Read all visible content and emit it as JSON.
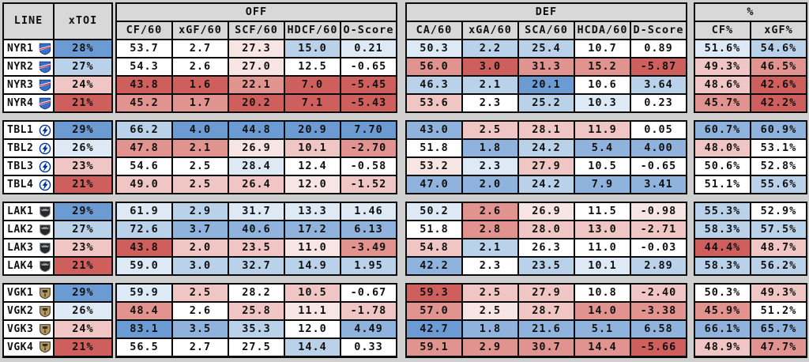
{
  "palette": {
    "b4": "#6b9bd2",
    "b3": "#8fb3dd",
    "b2": "#bad1ea",
    "b1": "#dde9f5",
    "w": "#ffffff",
    "r1": "#f7e5e3",
    "r2": "#efc6c3",
    "r3": "#e0938f",
    "r4": "#cf5f5c",
    "header_bg": "#d8d8d8",
    "page_bg": "#cfcfcf",
    "border": "#0a0a0a",
    "text": "#101010"
  },
  "chart_data": {
    "type": "table",
    "corner_headers": {
      "line": "LINE",
      "xtoi": "xTOI"
    },
    "groups": [
      {
        "label": "OFF",
        "columns": [
          "CF/60",
          "xGF/60",
          "SCF/60",
          "HDCF/60",
          "O-Score"
        ]
      },
      {
        "label": "DEF",
        "columns": [
          "CA/60",
          "xGA/60",
          "SCA/60",
          "HCDA/60",
          "D-Score"
        ]
      },
      {
        "label": "%",
        "columns": [
          "CF%",
          "xGF%"
        ]
      }
    ],
    "teams": [
      {
        "team": "NYR",
        "logo": "nyr-rangers-shield-logo",
        "rows": [
          {
            "line": "NYR1",
            "cells": [
              [
                "28%",
                "b4"
              ],
              [
                "53.7",
                "w"
              ],
              [
                "2.7",
                "w"
              ],
              [
                "27.3",
                "r1"
              ],
              [
                "15.0",
                "b2"
              ],
              [
                "0.21",
                "b1"
              ],
              [
                "50.3",
                "b1"
              ],
              [
                "2.2",
                "b2"
              ],
              [
                "25.4",
                "b2"
              ],
              [
                "10.7",
                "w"
              ],
              [
                "0.89",
                "w"
              ],
              [
                "51.6%",
                "b1"
              ],
              [
                "54.6%",
                "b2"
              ]
            ]
          },
          {
            "line": "NYR2",
            "cells": [
              [
                "27%",
                "b2"
              ],
              [
                "54.3",
                "w"
              ],
              [
                "2.6",
                "w"
              ],
              [
                "27.0",
                "r1"
              ],
              [
                "12.5",
                "w"
              ],
              [
                "-0.65",
                "w"
              ],
              [
                "56.0",
                "r3"
              ],
              [
                "3.0",
                "r4"
              ],
              [
                "31.3",
                "r3"
              ],
              [
                "15.2",
                "r3"
              ],
              [
                "-5.87",
                "r4"
              ],
              [
                "49.3%",
                "r2"
              ],
              [
                "46.5%",
                "r3"
              ]
            ]
          },
          {
            "line": "NYR3",
            "cells": [
              [
                "24%",
                "r2"
              ],
              [
                "43.8",
                "r4"
              ],
              [
                "1.6",
                "r4"
              ],
              [
                "22.1",
                "r3"
              ],
              [
                "7.0",
                "r4"
              ],
              [
                "-5.45",
                "r4"
              ],
              [
                "46.3",
                "b2"
              ],
              [
                "2.1",
                "b2"
              ],
              [
                "20.1",
                "b4"
              ],
              [
                "10.6",
                "w"
              ],
              [
                "3.64",
                "b2"
              ],
              [
                "48.6%",
                "r2"
              ],
              [
                "42.6%",
                "r4"
              ]
            ]
          },
          {
            "line": "NYR4",
            "cells": [
              [
                "21%",
                "r4"
              ],
              [
                "45.2",
                "r3"
              ],
              [
                "1.7",
                "r3"
              ],
              [
                "20.2",
                "r4"
              ],
              [
                "7.1",
                "r4"
              ],
              [
                "-5.43",
                "r4"
              ],
              [
                "53.6",
                "r2"
              ],
              [
                "2.3",
                "w"
              ],
              [
                "25.2",
                "b2"
              ],
              [
                "10.3",
                "b1"
              ],
              [
                "0.23",
                "w"
              ],
              [
                "45.7%",
                "r3"
              ],
              [
                "42.2%",
                "r4"
              ]
            ]
          }
        ]
      },
      {
        "team": "TBL",
        "logo": "tbl-lightning-bolt-logo",
        "rows": [
          {
            "line": "TBL1",
            "cells": [
              [
                "29%",
                "b4"
              ],
              [
                "66.2",
                "b2"
              ],
              [
                "4.0",
                "b4"
              ],
              [
                "44.8",
                "b4"
              ],
              [
                "20.9",
                "b4"
              ],
              [
                "7.70",
                "b4"
              ],
              [
                "43.0",
                "b3"
              ],
              [
                "2.5",
                "r2"
              ],
              [
                "28.1",
                "r2"
              ],
              [
                "11.9",
                "r2"
              ],
              [
                "0.05",
                "w"
              ],
              [
                "60.7%",
                "b3"
              ],
              [
                "60.9%",
                "b3"
              ]
            ]
          },
          {
            "line": "TBL2",
            "cells": [
              [
                "26%",
                "b1"
              ],
              [
                "47.8",
                "r3"
              ],
              [
                "2.1",
                "r3"
              ],
              [
                "26.9",
                "r1"
              ],
              [
                "10.1",
                "r2"
              ],
              [
                "-2.70",
                "r3"
              ],
              [
                "51.8",
                "w"
              ],
              [
                "1.8",
                "b3"
              ],
              [
                "24.2",
                "b2"
              ],
              [
                "5.4",
                "b3"
              ],
              [
                "4.00",
                "b3"
              ],
              [
                "48.0%",
                "r2"
              ],
              [
                "53.1%",
                "w"
              ]
            ]
          },
          {
            "line": "TBL3",
            "cells": [
              [
                "23%",
                "r2"
              ],
              [
                "54.6",
                "w"
              ],
              [
                "2.5",
                "w"
              ],
              [
                "28.4",
                "b1"
              ],
              [
                "12.4",
                "w"
              ],
              [
                "-0.58",
                "w"
              ],
              [
                "53.2",
                "r1"
              ],
              [
                "2.3",
                "b1"
              ],
              [
                "27.9",
                "r2"
              ],
              [
                "10.5",
                "w"
              ],
              [
                "-0.65",
                "w"
              ],
              [
                "50.6%",
                "w"
              ],
              [
                "52.8%",
                "w"
              ]
            ]
          },
          {
            "line": "TBL4",
            "cells": [
              [
                "21%",
                "r4"
              ],
              [
                "49.0",
                "r2"
              ],
              [
                "2.5",
                "r2"
              ],
              [
                "26.4",
                "r2"
              ],
              [
                "12.0",
                "r1"
              ],
              [
                "-1.52",
                "r2"
              ],
              [
                "47.0",
                "b3"
              ],
              [
                "2.0",
                "b3"
              ],
              [
                "24.2",
                "b2"
              ],
              [
                "7.9",
                "b3"
              ],
              [
                "3.41",
                "b3"
              ],
              [
                "51.1%",
                "w"
              ],
              [
                "55.6%",
                "b2"
              ]
            ]
          }
        ]
      },
      {
        "team": "LAK",
        "logo": "lak-kings-crest-logo",
        "rows": [
          {
            "line": "LAK1",
            "cells": [
              [
                "29%",
                "b4"
              ],
              [
                "61.9",
                "b1"
              ],
              [
                "2.9",
                "b2"
              ],
              [
                "31.7",
                "b1"
              ],
              [
                "13.3",
                "b1"
              ],
              [
                "1.46",
                "b1"
              ],
              [
                "50.2",
                "b1"
              ],
              [
                "2.6",
                "r3"
              ],
              [
                "26.9",
                "r1"
              ],
              [
                "11.5",
                "w"
              ],
              [
                "-0.98",
                "r1"
              ],
              [
                "55.3%",
                "b2"
              ],
              [
                "52.9%",
                "w"
              ]
            ]
          },
          {
            "line": "LAK2",
            "cells": [
              [
                "27%",
                "b2"
              ],
              [
                "72.6",
                "b2"
              ],
              [
                "3.7",
                "b3"
              ],
              [
                "40.6",
                "b3"
              ],
              [
                "17.2",
                "b3"
              ],
              [
                "6.13",
                "b3"
              ],
              [
                "51.8",
                "w"
              ],
              [
                "2.8",
                "r3"
              ],
              [
                "28.0",
                "r2"
              ],
              [
                "13.0",
                "r2"
              ],
              [
                "-2.71",
                "r2"
              ],
              [
                "58.3%",
                "b2"
              ],
              [
                "57.5%",
                "b2"
              ]
            ]
          },
          {
            "line": "LAK3",
            "cells": [
              [
                "23%",
                "r2"
              ],
              [
                "43.8",
                "r4"
              ],
              [
                "2.0",
                "r2"
              ],
              [
                "23.5",
                "r2"
              ],
              [
                "11.0",
                "r1"
              ],
              [
                "-3.49",
                "r3"
              ],
              [
                "54.8",
                "r2"
              ],
              [
                "2.1",
                "b2"
              ],
              [
                "26.3",
                "w"
              ],
              [
                "11.0",
                "w"
              ],
              [
                "-0.03",
                "w"
              ],
              [
                "44.4%",
                "r4"
              ],
              [
                "48.7%",
                "r2"
              ]
            ]
          },
          {
            "line": "LAK4",
            "cells": [
              [
                "21%",
                "r4"
              ],
              [
                "59.0",
                "b1"
              ],
              [
                "3.0",
                "b2"
              ],
              [
                "32.7",
                "b2"
              ],
              [
                "14.9",
                "b2"
              ],
              [
                "1.95",
                "b2"
              ],
              [
                "42.2",
                "b3"
              ],
              [
                "2.3",
                "w"
              ],
              [
                "23.5",
                "b2"
              ],
              [
                "10.1",
                "b1"
              ],
              [
                "2.89",
                "b2"
              ],
              [
                "58.3%",
                "b2"
              ],
              [
                "56.2%",
                "b2"
              ]
            ]
          }
        ]
      },
      {
        "team": "VGK",
        "logo": "vgk-golden-knights-shield-logo",
        "rows": [
          {
            "line": "VGK1",
            "cells": [
              [
                "29%",
                "b4"
              ],
              [
                "59.9",
                "b1"
              ],
              [
                "2.5",
                "r2"
              ],
              [
                "28.2",
                "w"
              ],
              [
                "10.5",
                "r2"
              ],
              [
                "-0.67",
                "w"
              ],
              [
                "59.3",
                "r4"
              ],
              [
                "2.5",
                "r2"
              ],
              [
                "27.9",
                "r2"
              ],
              [
                "10.8",
                "w"
              ],
              [
                "-2.40",
                "r2"
              ],
              [
                "50.3%",
                "w"
              ],
              [
                "49.3%",
                "r2"
              ]
            ]
          },
          {
            "line": "VGK2",
            "cells": [
              [
                "26%",
                "b1"
              ],
              [
                "48.4",
                "r3"
              ],
              [
                "2.6",
                "w"
              ],
              [
                "25.8",
                "r2"
              ],
              [
                "11.1",
                "r1"
              ],
              [
                "-1.78",
                "r2"
              ],
              [
                "57.0",
                "r3"
              ],
              [
                "2.5",
                "r1"
              ],
              [
                "28.7",
                "r2"
              ],
              [
                "14.0",
                "r3"
              ],
              [
                "-3.38",
                "r3"
              ],
              [
                "45.9%",
                "r3"
              ],
              [
                "51.2%",
                "w"
              ]
            ]
          },
          {
            "line": "VGK3",
            "cells": [
              [
                "24%",
                "r2"
              ],
              [
                "83.1",
                "b4"
              ],
              [
                "3.5",
                "b3"
              ],
              [
                "35.3",
                "b2"
              ],
              [
                "12.0",
                "w"
              ],
              [
                "4.49",
                "b3"
              ],
              [
                "42.7",
                "b4"
              ],
              [
                "1.8",
                "b3"
              ],
              [
                "21.6",
                "b3"
              ],
              [
                "5.1",
                "b3"
              ],
              [
                "6.58",
                "b3"
              ],
              [
                "66.1%",
                "b3"
              ],
              [
                "65.7%",
                "b3"
              ]
            ]
          },
          {
            "line": "VGK4",
            "cells": [
              [
                "21%",
                "r4"
              ],
              [
                "56.5",
                "w"
              ],
              [
                "2.7",
                "w"
              ],
              [
                "27.5",
                "w"
              ],
              [
                "14.4",
                "b2"
              ],
              [
                "0.33",
                "w"
              ],
              [
                "59.1",
                "r3"
              ],
              [
                "2.9",
                "r3"
              ],
              [
                "30.7",
                "r3"
              ],
              [
                "14.4",
                "r3"
              ],
              [
                "-5.66",
                "r4"
              ],
              [
                "48.9%",
                "r2"
              ],
              [
                "47.7%",
                "r3"
              ]
            ]
          }
        ]
      }
    ]
  }
}
